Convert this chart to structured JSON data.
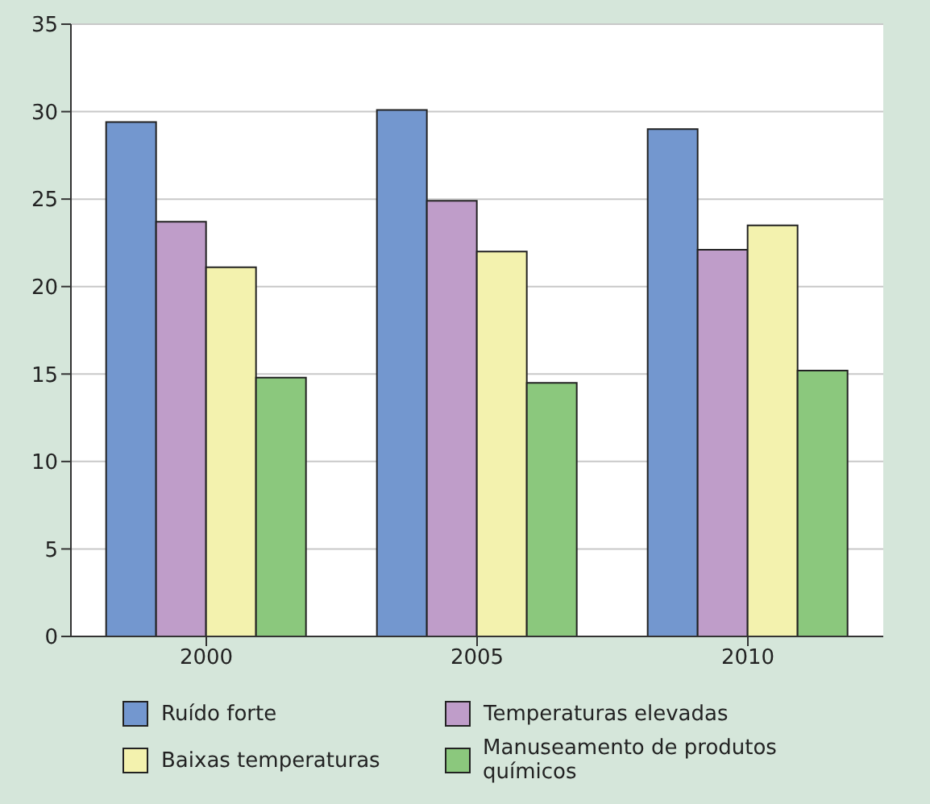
{
  "chart_data": {
    "type": "bar",
    "categories": [
      "2000",
      "2005",
      "2010"
    ],
    "series": [
      {
        "name": "Ruído forte",
        "color": "#7397cf",
        "values": [
          29.4,
          30.1,
          29.0
        ]
      },
      {
        "name": "Temperaturas elevadas",
        "color": "#bf9dc9",
        "values": [
          23.7,
          24.9,
          22.1
        ]
      },
      {
        "name": "Baixas temperaturas",
        "color": "#f3f2ae",
        "values": [
          21.1,
          22.0,
          23.5
        ]
      },
      {
        "name": "Manuseamento de produtos químicos",
        "color": "#8bc87d",
        "values": [
          14.8,
          14.5,
          15.2
        ]
      }
    ],
    "ylim": [
      0,
      35
    ],
    "yticks": [
      0,
      5,
      10,
      15,
      20,
      25,
      30,
      35
    ],
    "grid": "y",
    "legend": "bottom"
  }
}
